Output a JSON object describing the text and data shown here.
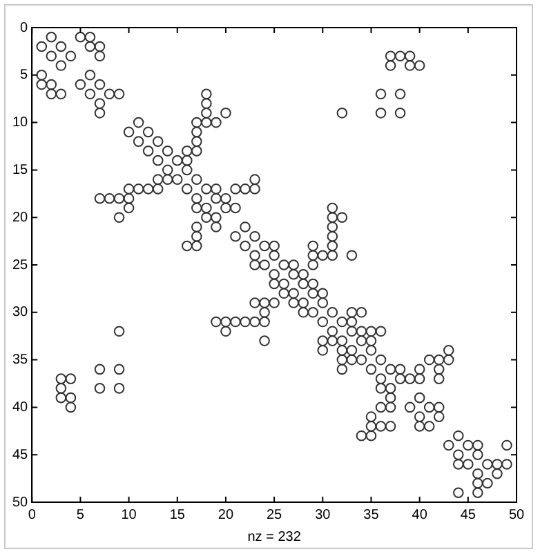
{
  "chart_data": {
    "type": "scatter",
    "xlabel": "nz = 232",
    "xlim": [
      0,
      50
    ],
    "xticks": [
      0,
      5,
      10,
      15,
      20,
      25,
      30,
      35,
      40,
      45,
      50
    ],
    "ylim": [
      50,
      0
    ],
    "yticks": [
      0,
      5,
      10,
      15,
      20,
      25,
      30,
      35,
      40,
      45,
      50
    ],
    "grid": false,
    "marker": "circle",
    "series": [
      {
        "color": "#333333",
        "x": [
          2,
          5,
          6,
          1,
          3,
          6,
          7,
          2,
          4,
          7,
          37,
          38,
          39,
          3,
          37,
          39,
          40,
          1,
          6,
          1,
          2,
          5,
          7,
          2,
          3,
          6,
          8,
          9,
          18,
          36,
          38,
          7,
          18,
          7,
          18,
          20,
          32,
          36,
          38,
          11,
          17,
          18,
          19,
          10,
          12,
          17,
          11,
          13,
          17,
          12,
          14,
          16,
          17,
          13,
          15,
          16,
          14,
          16,
          13,
          14,
          15,
          17,
          23,
          10,
          11,
          12,
          13,
          16,
          18,
          19,
          21,
          22,
          23,
          7,
          8,
          9,
          10,
          17,
          19,
          20,
          10,
          17,
          18,
          20,
          21,
          31,
          9,
          18,
          19,
          31,
          32,
          17,
          19,
          22,
          31,
          17,
          21,
          23,
          31,
          16,
          17,
          22,
          24,
          25,
          29,
          31,
          23,
          25,
          29,
          30,
          31,
          33,
          23,
          24,
          26,
          27,
          29,
          25,
          27,
          28,
          25,
          26,
          28,
          29,
          26,
          27,
          29,
          30,
          23,
          24,
          25,
          27,
          28,
          30,
          24,
          28,
          29,
          31,
          33,
          34,
          19,
          20,
          21,
          22,
          23,
          24,
          30,
          32,
          33,
          9,
          20,
          31,
          33,
          34,
          35,
          36,
          24,
          30,
          31,
          32,
          34,
          35,
          30,
          32,
          33,
          35,
          43,
          32,
          33,
          34,
          36,
          41,
          42,
          43,
          7,
          9,
          32,
          35,
          37,
          38,
          40,
          42,
          3,
          4,
          36,
          38,
          39,
          40,
          42,
          3,
          7,
          9,
          36,
          37,
          3,
          4,
          37,
          40,
          4,
          36,
          37,
          39,
          41,
          42,
          35,
          40,
          42,
          35,
          36,
          37,
          40,
          41,
          34,
          35,
          44,
          43,
          45,
          46,
          49,
          44,
          46,
          44,
          45,
          47,
          48,
          49,
          46,
          48,
          46,
          47,
          44,
          46
        ],
        "values": [
          1,
          1,
          1,
          2,
          2,
          2,
          2,
          3,
          3,
          3,
          3,
          3,
          3,
          4,
          4,
          4,
          4,
          5,
          5,
          6,
          6,
          6,
          6,
          7,
          7,
          7,
          7,
          7,
          7,
          7,
          7,
          8,
          8,
          9,
          9,
          9,
          9,
          9,
          9,
          10,
          10,
          10,
          10,
          11,
          11,
          11,
          12,
          12,
          12,
          13,
          13,
          13,
          13,
          14,
          14,
          14,
          15,
          15,
          16,
          16,
          16,
          16,
          16,
          17,
          17,
          17,
          17,
          17,
          17,
          17,
          17,
          17,
          17,
          18,
          18,
          18,
          18,
          18,
          18,
          18,
          19,
          19,
          19,
          19,
          19,
          19,
          20,
          20,
          20,
          20,
          20,
          21,
          21,
          21,
          21,
          22,
          22,
          22,
          22,
          23,
          23,
          23,
          23,
          23,
          23,
          23,
          24,
          24,
          24,
          24,
          24,
          24,
          25,
          25,
          25,
          25,
          25,
          26,
          26,
          26,
          27,
          27,
          27,
          27,
          28,
          28,
          28,
          28,
          29,
          29,
          29,
          29,
          29,
          29,
          30,
          30,
          30,
          30,
          30,
          30,
          31,
          31,
          31,
          31,
          31,
          31,
          31,
          31,
          31,
          32,
          32,
          32,
          32,
          32,
          32,
          32,
          33,
          33,
          33,
          33,
          33,
          33,
          34,
          34,
          34,
          34,
          34,
          35,
          35,
          35,
          35,
          35,
          35,
          35,
          36,
          36,
          36,
          36,
          36,
          36,
          36,
          36,
          37,
          37,
          37,
          37,
          37,
          37,
          37,
          38,
          38,
          38,
          38,
          38,
          39,
          39,
          39,
          39,
          40,
          40,
          40,
          40,
          40,
          40,
          41,
          41,
          41,
          42,
          42,
          42,
          42,
          42,
          43,
          43,
          43,
          44,
          44,
          44,
          44,
          45,
          45,
          46,
          46,
          46,
          46,
          46,
          47,
          47,
          48,
          48,
          49,
          49
        ]
      }
    ]
  }
}
